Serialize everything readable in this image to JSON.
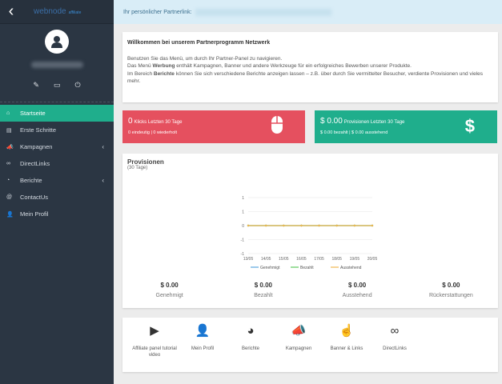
{
  "sidebar": {
    "logo": "webnode",
    "logo_sub": "affiliate",
    "back_icon": "chevron-left-icon",
    "items": [
      {
        "label": "Startseite",
        "icon": "home-icon",
        "active": true
      },
      {
        "label": "Erste Schritte",
        "icon": "book-icon"
      },
      {
        "label": "Kampagnen",
        "icon": "megaphone-icon",
        "submenu": true
      },
      {
        "label": "DirectLinks",
        "icon": "link-icon"
      },
      {
        "label": "Berichte",
        "icon": "chart-icon",
        "submenu": true
      },
      {
        "label": "ContactUs",
        "icon": "at-icon"
      },
      {
        "label": "Mein Profil",
        "icon": "user-icon"
      }
    ]
  },
  "topbar": {
    "label": "Ihr persönlicher Partnerlink:"
  },
  "welcome": {
    "title": "Willkommen bei unserem Partnerprogramm Netzwerk",
    "l1": "Benutzen Sie das Menü, um durch Ihr Partner-Panel zu navigieren.",
    "l2a": "Das Menü ",
    "l2b": "Werbung",
    "l2c": " enthält Kampagnen, Banner und andere Werkzeuge für ein erfolgreiches Bewerben unserer Produkte.",
    "l3a": "Im Bereich ",
    "l3b": "Berichte",
    "l3c": " können Sie sich verschiedene Berichte anzeigen lassen – z.B. über durch Sie vermittelter Besucher, verdiente Provisionen und vieles mehr."
  },
  "clicks": {
    "value": "0",
    "label": "Klicks Letzten 30 Tage",
    "sub": "0 eindeutig | 0 wiederholt",
    "color": "#e5505f"
  },
  "commissions": {
    "value": "$ 0.00",
    "label": "Provisionen Letzten 30 Tage",
    "sub": "$ 0.00 bezahlt | $ 0.00 ausstehend",
    "color": "#1fae8c"
  },
  "provisionen": {
    "title": "Provisionen",
    "subtitle": "(30 Tage)",
    "totals": [
      {
        "value": "$ 0.00",
        "label": "Genehmigt"
      },
      {
        "value": "$ 0.00",
        "label": "Bezahlt"
      },
      {
        "value": "$ 0.00",
        "label": "Ausstehend"
      },
      {
        "value": "$ 0.00",
        "label": "Rückerstattungen"
      }
    ]
  },
  "chart_data": {
    "type": "line",
    "categories": [
      "13/05",
      "14/05",
      "15/05",
      "16/05",
      "17/05",
      "18/05",
      "19/05",
      "20/05"
    ],
    "yticks": [
      "1",
      "1",
      "0",
      "-1",
      "-1"
    ],
    "ylim": [
      -1,
      1
    ],
    "grid": true,
    "legend": "bottom",
    "series": [
      {
        "name": "Genehmigt",
        "color": "#5aa7e0",
        "values": [
          0,
          0,
          0,
          0,
          0,
          0,
          0,
          0
        ]
      },
      {
        "name": "Bezahlt",
        "color": "#5cc85c",
        "values": [
          0,
          0,
          0,
          0,
          0,
          0,
          0,
          0
        ]
      },
      {
        "name": "Ausstehend",
        "color": "#f0b650",
        "values": [
          0,
          0,
          0,
          0,
          0,
          0,
          0,
          0
        ]
      }
    ]
  },
  "shortcuts": [
    {
      "label": "Affiliate panel tutorial video",
      "icon": "video-icon"
    },
    {
      "label": "Mein Profil",
      "icon": "user-icon"
    },
    {
      "label": "Berichte",
      "icon": "pie-chart-icon"
    },
    {
      "label": "Kampagnen",
      "icon": "megaphone-icon"
    },
    {
      "label": "Banner & Links",
      "icon": "pointer-hand-icon"
    },
    {
      "label": "DirectLinks",
      "icon": "link-icon"
    }
  ]
}
